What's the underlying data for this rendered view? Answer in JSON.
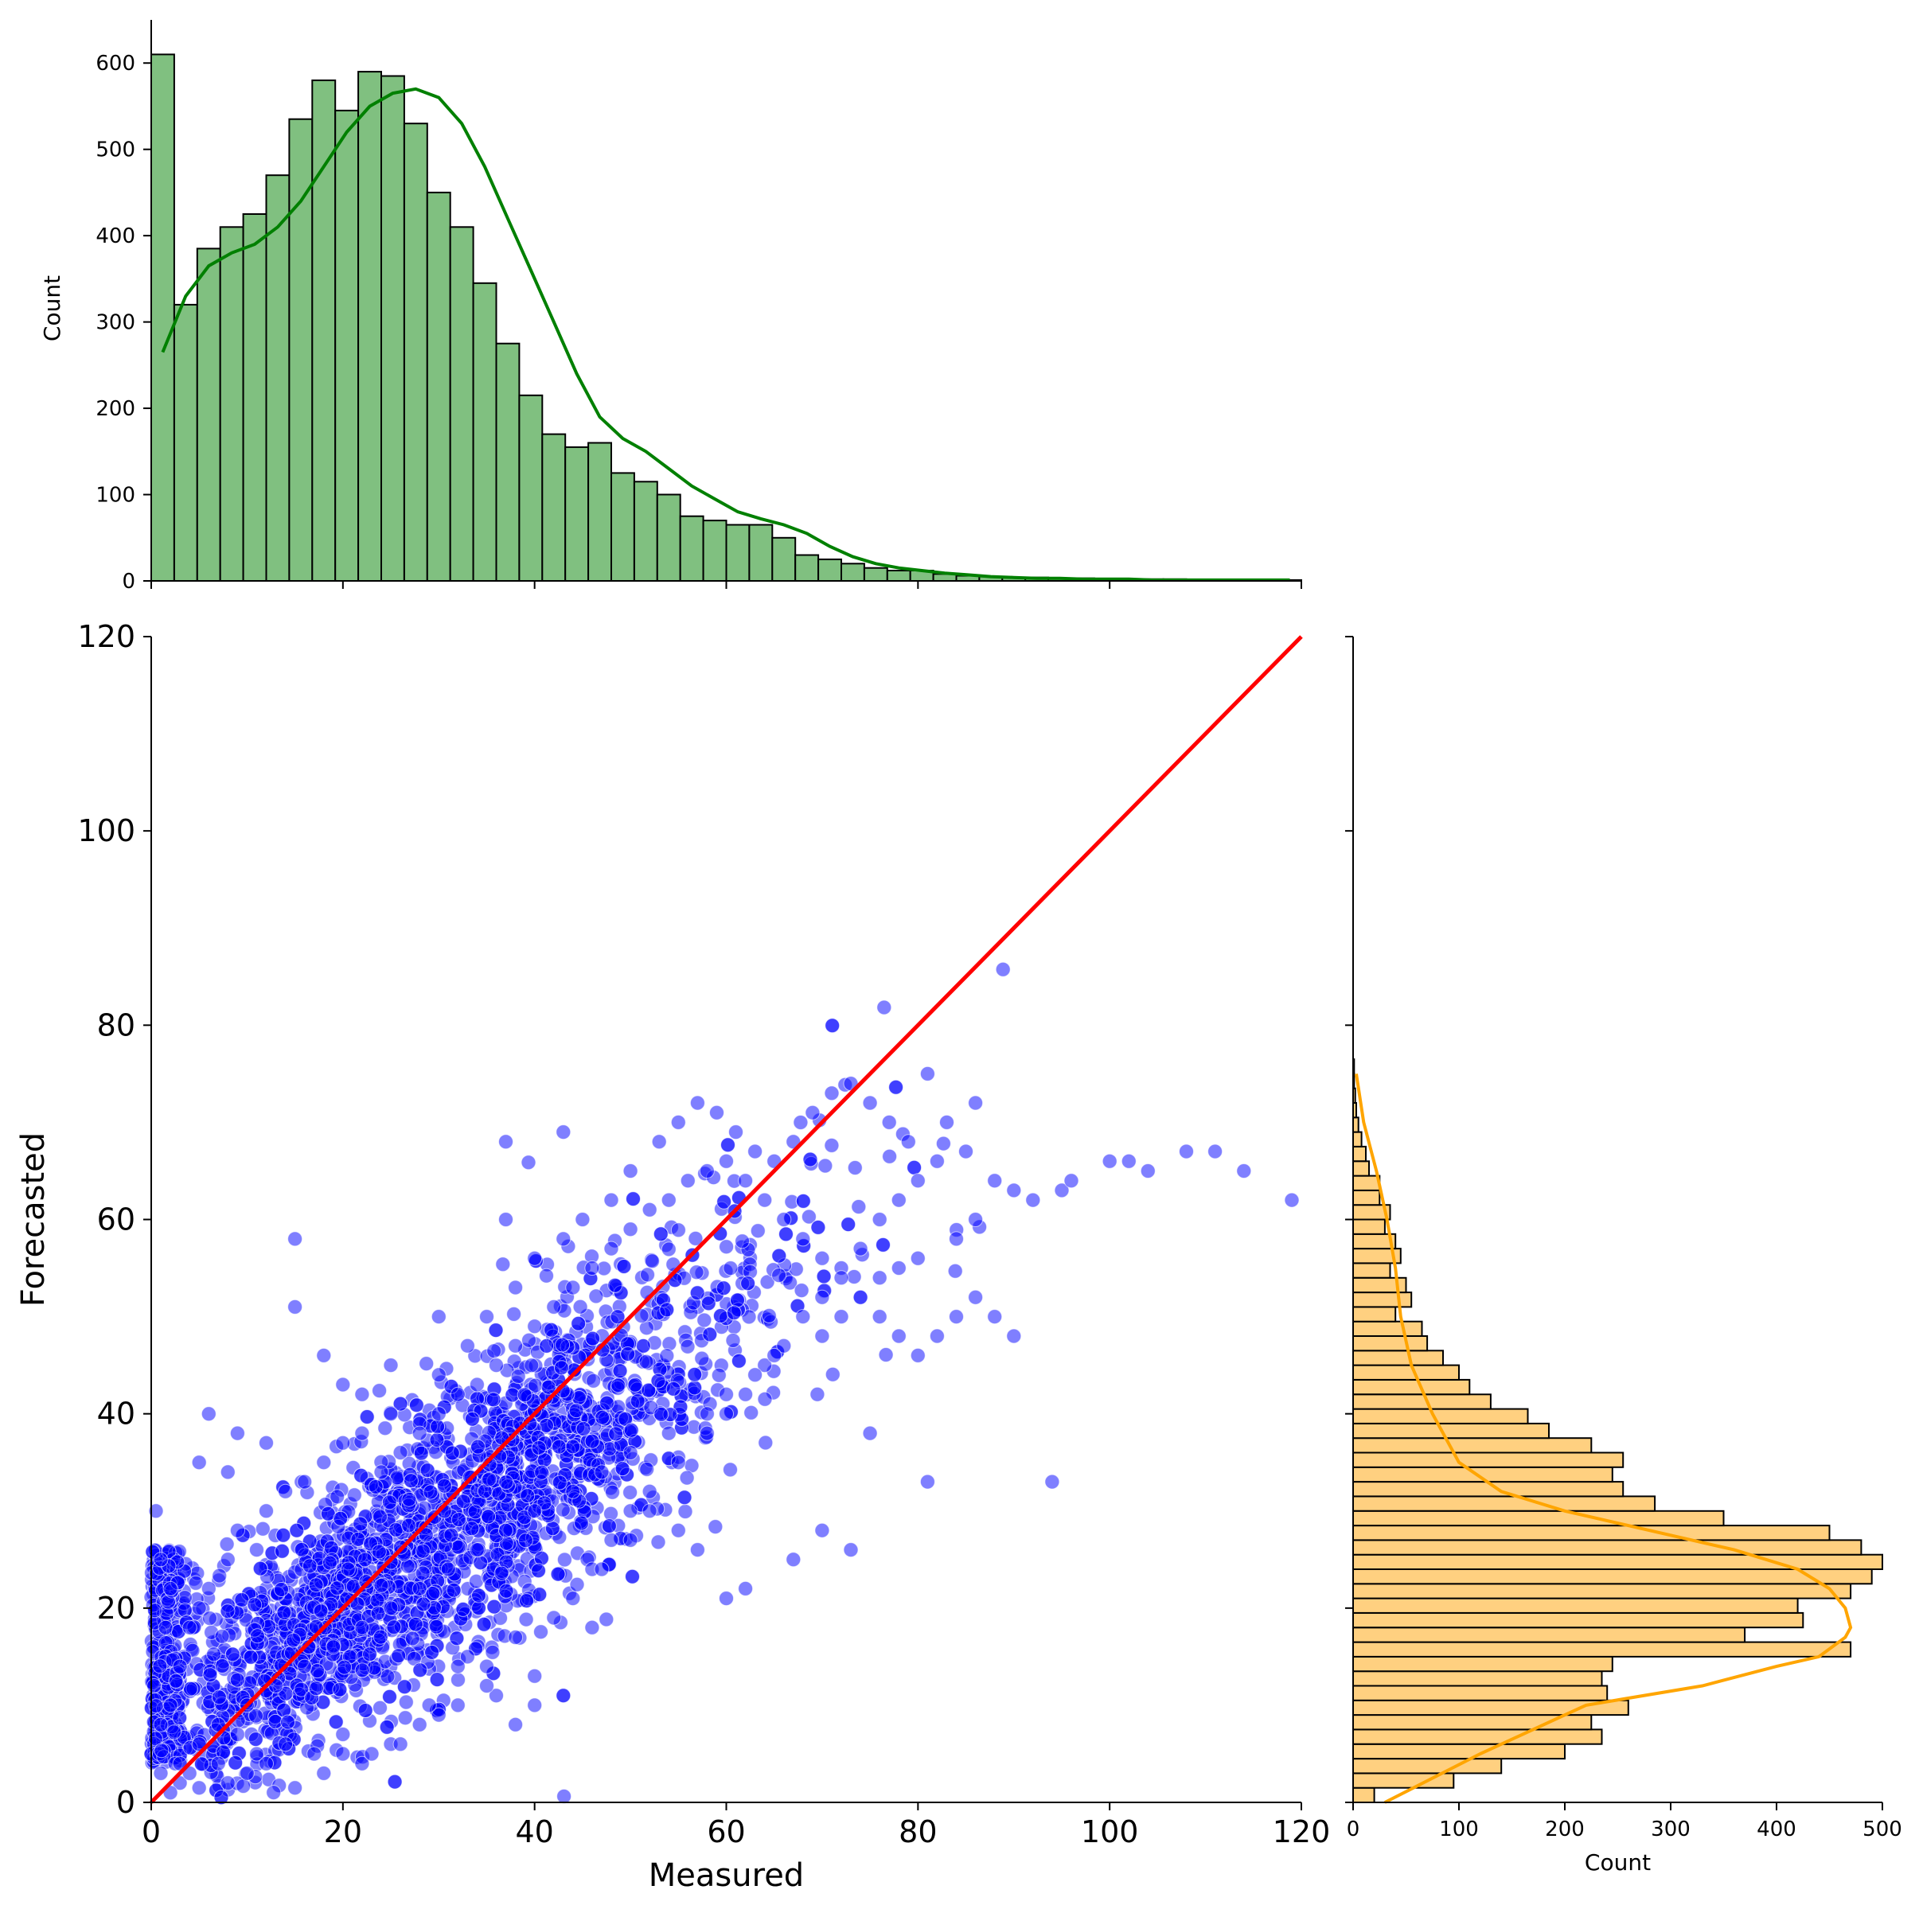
{
  "chart_data": [
    {
      "type": "scatter",
      "xlabel": "Measured",
      "ylabel": "Forecasted",
      "xlim": [
        0,
        120
      ],
      "ylim": [
        0,
        120
      ],
      "xticks": [
        0,
        20,
        40,
        60,
        80,
        100,
        120
      ],
      "yticks": [
        0,
        20,
        40,
        60,
        80,
        100,
        120
      ],
      "point_color": "#0000ff",
      "reference_line": {
        "x": [
          0,
          120
        ],
        "y": [
          0,
          120
        ],
        "color": "#ff0000"
      },
      "points_note_estimated_count": 7000,
      "points": [
        [
          0.5,
          30
        ],
        [
          1,
          25
        ],
        [
          2,
          22
        ],
        [
          1.5,
          18
        ],
        [
          0.3,
          12
        ],
        [
          1,
          8
        ],
        [
          2.5,
          4
        ],
        [
          3,
          2
        ],
        [
          5,
          1.5
        ],
        [
          8,
          2
        ],
        [
          10,
          3
        ],
        [
          12,
          4
        ],
        [
          15,
          1.5
        ],
        [
          18,
          3
        ],
        [
          20,
          5
        ],
        [
          22,
          4
        ],
        [
          25,
          6
        ],
        [
          28,
          8
        ],
        [
          30,
          9
        ],
        [
          32,
          10
        ],
        [
          36,
          11
        ],
        [
          40,
          13
        ],
        [
          43,
          11
        ],
        [
          35,
          14
        ],
        [
          33,
          15
        ],
        [
          38,
          17
        ],
        [
          42,
          19
        ],
        [
          44,
          21
        ],
        [
          46,
          24
        ],
        [
          48,
          27
        ],
        [
          50,
          30
        ],
        [
          52,
          32
        ],
        [
          55,
          35
        ],
        [
          58,
          38
        ],
        [
          60,
          40
        ],
        [
          62,
          42
        ],
        [
          64,
          45
        ],
        [
          66,
          47
        ],
        [
          68,
          50
        ],
        [
          70,
          52
        ],
        [
          72,
          55
        ],
        [
          74,
          57
        ],
        [
          76,
          60
        ],
        [
          78,
          62
        ],
        [
          80,
          64
        ],
        [
          82,
          66
        ],
        [
          85,
          67
        ],
        [
          90,
          63
        ],
        [
          92,
          62
        ],
        [
          95,
          63
        ],
        [
          96,
          64
        ],
        [
          100,
          66
        ],
        [
          102,
          66
        ],
        [
          104,
          65
        ],
        [
          108,
          67
        ],
        [
          111,
          67
        ],
        [
          114,
          65
        ],
        [
          119,
          62
        ],
        [
          88,
          64
        ],
        [
          86,
          60
        ],
        [
          84,
          58
        ],
        [
          80,
          56
        ],
        [
          78,
          55
        ],
        [
          76,
          54
        ],
        [
          74,
          52
        ],
        [
          72,
          50
        ],
        [
          70,
          48
        ],
        [
          65,
          46
        ],
        [
          63,
          44
        ],
        [
          60,
          42
        ],
        [
          58,
          40
        ],
        [
          54,
          38
        ],
        [
          50,
          36
        ],
        [
          47,
          34
        ],
        [
          44,
          32
        ],
        [
          40,
          30
        ],
        [
          37,
          28
        ],
        [
          34,
          26
        ],
        [
          31,
          24
        ],
        [
          28,
          22
        ],
        [
          25,
          20
        ],
        [
          22,
          18
        ],
        [
          19,
          16
        ],
        [
          16,
          14
        ],
        [
          13,
          12
        ],
        [
          10,
          10
        ],
        [
          7,
          8
        ],
        [
          5,
          6
        ],
        [
          3,
          4
        ],
        [
          15,
          58
        ],
        [
          15,
          51
        ],
        [
          18,
          46
        ],
        [
          22,
          42
        ],
        [
          25,
          40
        ],
        [
          28,
          39
        ],
        [
          30,
          44
        ],
        [
          33,
          47
        ],
        [
          35,
          50
        ],
        [
          38,
          53
        ],
        [
          40,
          56
        ],
        [
          43,
          58
        ],
        [
          45,
          60
        ],
        [
          48,
          62
        ],
        [
          50,
          65
        ],
        [
          53,
          68
        ],
        [
          55,
          70
        ],
        [
          57,
          72
        ],
        [
          59,
          71
        ],
        [
          61,
          69
        ],
        [
          63,
          67
        ],
        [
          65,
          66
        ],
        [
          67,
          68
        ],
        [
          69,
          71
        ],
        [
          71,
          73
        ],
        [
          73,
          74
        ],
        [
          75,
          72
        ],
        [
          77,
          70
        ],
        [
          79,
          68
        ],
        [
          81,
          75
        ],
        [
          83,
          70
        ],
        [
          86,
          72
        ],
        [
          37,
          68
        ],
        [
          43,
          69
        ],
        [
          37,
          60
        ],
        [
          30,
          50
        ],
        [
          25,
          45
        ],
        [
          20,
          43
        ],
        [
          12,
          37
        ],
        [
          8,
          34
        ],
        [
          5,
          35
        ],
        [
          6,
          40
        ],
        [
          9,
          38
        ],
        [
          75,
          38
        ],
        [
          81,
          33
        ],
        [
          94,
          33
        ],
        [
          73,
          26
        ],
        [
          70,
          28
        ],
        [
          67,
          25
        ],
        [
          62,
          22
        ],
        [
          60,
          21
        ],
        [
          57,
          26
        ],
        [
          55,
          28
        ],
        [
          52,
          30
        ],
        [
          50,
          27
        ],
        [
          47,
          24
        ],
        [
          46,
          18
        ],
        [
          43,
          11
        ],
        [
          40,
          10
        ],
        [
          38,
          8
        ],
        [
          35,
          12
        ],
        [
          32,
          14
        ],
        [
          29,
          10
        ],
        [
          26,
          6
        ],
        [
          23,
          5
        ],
        [
          20,
          7
        ],
        [
          17,
          5
        ],
        [
          14,
          6
        ],
        [
          11,
          5
        ],
        [
          9,
          7
        ],
        [
          7,
          4
        ],
        [
          4,
          3
        ],
        [
          2,
          1
        ],
        [
          1,
          3
        ],
        [
          2,
          10
        ],
        [
          3,
          14
        ],
        [
          4,
          18
        ],
        [
          5,
          20
        ],
        [
          6,
          22
        ],
        [
          8,
          25
        ],
        [
          9,
          28
        ],
        [
          11,
          26
        ],
        [
          12,
          30
        ],
        [
          14,
          32
        ],
        [
          16,
          33
        ],
        [
          18,
          35
        ],
        [
          20,
          37
        ],
        [
          22,
          38
        ],
        [
          24,
          34
        ],
        [
          26,
          36
        ],
        [
          28,
          38
        ],
        [
          30,
          40
        ],
        [
          32,
          42
        ],
        [
          34,
          43
        ],
        [
          36,
          45
        ],
        [
          38,
          47
        ],
        [
          40,
          49
        ],
        [
          42,
          51
        ],
        [
          44,
          53
        ],
        [
          46,
          55
        ],
        [
          48,
          57
        ],
        [
          50,
          59
        ],
        [
          52,
          61
        ],
        [
          54,
          62
        ],
        [
          56,
          64
        ],
        [
          58,
          65
        ],
        [
          60,
          66
        ],
        [
          62,
          64
        ],
        [
          64,
          62
        ],
        [
          66,
          60
        ],
        [
          68,
          58
        ],
        [
          70,
          56
        ],
        [
          72,
          54
        ],
        [
          74,
          52
        ],
        [
          76,
          50
        ],
        [
          78,
          48
        ],
        [
          80,
          46
        ],
        [
          82,
          48
        ],
        [
          84,
          50
        ],
        [
          86,
          52
        ],
        [
          88,
          50
        ],
        [
          90,
          48
        ]
      ]
    },
    {
      "type": "bar",
      "orientation": "vertical",
      "ylabel": "Count",
      "xlim": [
        0,
        120
      ],
      "ylim": [
        0,
        650
      ],
      "yticks": [
        0,
        100,
        200,
        300,
        400,
        500,
        600
      ],
      "xticks": [
        0,
        20,
        40,
        60,
        80,
        100,
        120
      ],
      "bin_width": 2.4,
      "bar_color": "#80c080",
      "kde_color": "#008000",
      "values": [
        610,
        320,
        385,
        410,
        425,
        470,
        535,
        580,
        545,
        590,
        585,
        530,
        450,
        410,
        345,
        275,
        215,
        170,
        155,
        160,
        125,
        115,
        100,
        75,
        70,
        65,
        65,
        50,
        30,
        25,
        20,
        15,
        12,
        12,
        8,
        6,
        5,
        4,
        4,
        3,
        3,
        2,
        2,
        2,
        2,
        1,
        1,
        1,
        1,
        1
      ],
      "kde": [
        265,
        330,
        365,
        380,
        390,
        410,
        440,
        480,
        520,
        550,
        565,
        570,
        560,
        530,
        480,
        420,
        360,
        300,
        240,
        190,
        165,
        150,
        130,
        110,
        95,
        80,
        72,
        65,
        55,
        40,
        28,
        20,
        15,
        12,
        9,
        7,
        5,
        4,
        3,
        3,
        2,
        2,
        2,
        1,
        1,
        1,
        1,
        1,
        1,
        1
      ]
    },
    {
      "type": "bar",
      "orientation": "horizontal",
      "xlabel": "Count",
      "xlim": [
        0,
        500
      ],
      "xticks": [
        0,
        100,
        200,
        300,
        400,
        500
      ],
      "bin_width": 1.5,
      "bar_color": "#ffd080",
      "kde_color": "#ffa500",
      "bins_start": 0,
      "values": [
        20,
        95,
        140,
        200,
        235,
        225,
        260,
        240,
        235,
        245,
        470,
        370,
        425,
        420,
        470,
        490,
        500,
        480,
        450,
        350,
        285,
        255,
        245,
        255,
        225,
        185,
        165,
        130,
        110,
        100,
        85,
        70,
        65,
        40,
        55,
        50,
        35,
        45,
        40,
        30,
        35,
        25,
        25,
        15,
        12,
        8,
        5,
        3,
        2,
        1,
        1
      ],
      "kde_y": [
        0,
        5,
        10,
        12,
        14,
        15,
        17,
        18,
        20,
        22,
        24,
        26,
        28,
        30,
        32,
        35,
        40,
        45,
        50,
        55,
        60,
        65,
        70,
        75
      ],
      "kde_x": [
        30,
        120,
        220,
        330,
        400,
        440,
        465,
        470,
        465,
        450,
        420,
        360,
        280,
        200,
        140,
        100,
        75,
        55,
        45,
        40,
        32,
        22,
        10,
        3
      ]
    }
  ]
}
